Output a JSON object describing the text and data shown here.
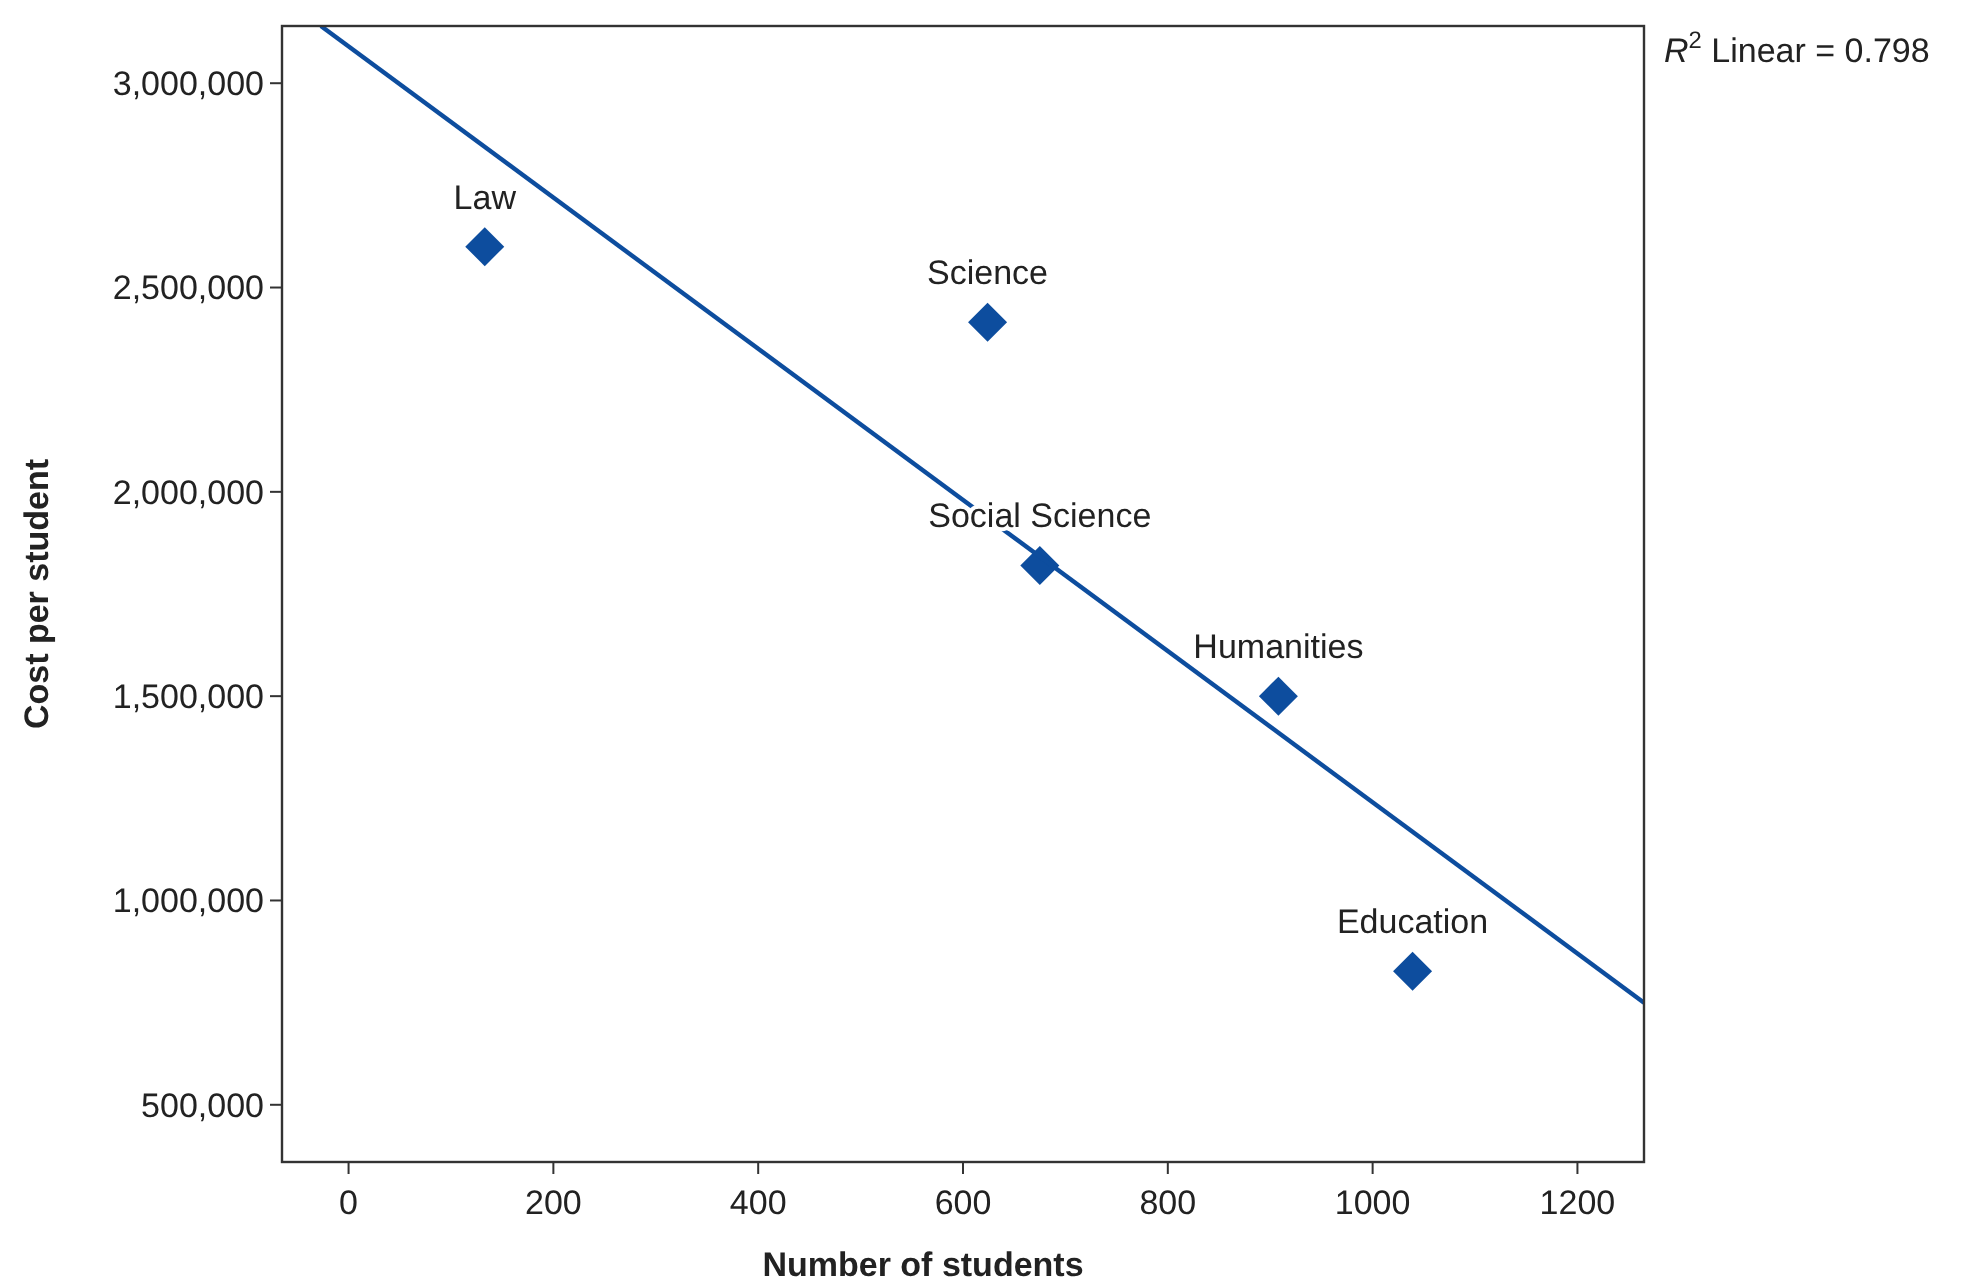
{
  "chart_data": {
    "type": "scatter",
    "xlabel": "Number of students",
    "ylabel": "Cost per student",
    "xlim": [
      -65,
      1265
    ],
    "ylim": [
      360000,
      3140000
    ],
    "xticks": [
      0,
      200,
      400,
      600,
      800,
      1000,
      1200
    ],
    "yticks": [
      {
        "value": 500000,
        "label": "500,000"
      },
      {
        "value": 1000000,
        "label": "1,000,000"
      },
      {
        "value": 1500000,
        "label": "1,500,000"
      },
      {
        "value": 2000000,
        "label": "2,000,000"
      },
      {
        "value": 2500000,
        "label": "2,500,000"
      },
      {
        "value": 3000000,
        "label": "3,000,000"
      }
    ],
    "grid": false,
    "series": [
      {
        "marker": "diamond",
        "color": "#0d4d9e",
        "x": [
          133,
          624,
          675,
          908,
          1039
        ],
        "values": [
          2600000,
          2415000,
          1820000,
          1500000,
          827000
        ]
      },
      {
        "type": "line",
        "color": "#0d4d9e",
        "x": [
          -27,
          1265
        ],
        "values": [
          3140000,
          750000
        ]
      }
    ],
    "annotations": [
      {
        "text": "Law",
        "x": 133,
        "y": 2600000
      },
      {
        "text": "Science",
        "x": 624,
        "y": 2415000
      },
      {
        "text": "Social Science",
        "x": 675,
        "y": 1820000
      },
      {
        "text": "Humanities",
        "x": 908,
        "y": 1500000
      },
      {
        "text": "Education",
        "x": 1039,
        "y": 827000
      },
      "R$^{2}$ Linear = 0.798"
    ]
  }
}
